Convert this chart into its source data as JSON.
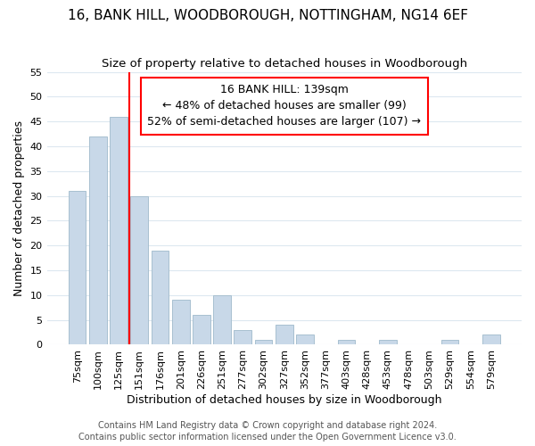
{
  "title": "16, BANK HILL, WOODBOROUGH, NOTTINGHAM, NG14 6EF",
  "subtitle": "Size of property relative to detached houses in Woodborough",
  "xlabel": "Distribution of detached houses by size in Woodborough",
  "ylabel": "Number of detached properties",
  "bar_color": "#c8d8e8",
  "bar_edge_color": "#a8c0d0",
  "categories": [
    "75sqm",
    "100sqm",
    "125sqm",
    "151sqm",
    "176sqm",
    "201sqm",
    "226sqm",
    "251sqm",
    "277sqm",
    "302sqm",
    "327sqm",
    "352sqm",
    "377sqm",
    "403sqm",
    "428sqm",
    "453sqm",
    "478sqm",
    "503sqm",
    "529sqm",
    "554sqm",
    "579sqm"
  ],
  "values": [
    31,
    42,
    46,
    30,
    19,
    9,
    6,
    10,
    3,
    1,
    4,
    2,
    0,
    1,
    0,
    1,
    0,
    0,
    1,
    0,
    2
  ],
  "ylim": [
    0,
    55
  ],
  "yticks": [
    0,
    5,
    10,
    15,
    20,
    25,
    30,
    35,
    40,
    45,
    50,
    55
  ],
  "vline_pos": 2.5,
  "vline_label": "16 BANK HILL: 139sqm",
  "annotation_line1": "← 48% of detached houses are smaller (99)",
  "annotation_line2": "52% of semi-detached houses are larger (107) →",
  "footer1": "Contains HM Land Registry data © Crown copyright and database right 2024.",
  "footer2": "Contains public sector information licensed under the Open Government Licence v3.0.",
  "background_color": "#ffffff",
  "grid_color": "#dde8f0",
  "title_fontsize": 11,
  "subtitle_fontsize": 9.5,
  "axis_label_fontsize": 9,
  "tick_fontsize": 8,
  "annotation_fontsize": 9,
  "footer_fontsize": 7
}
